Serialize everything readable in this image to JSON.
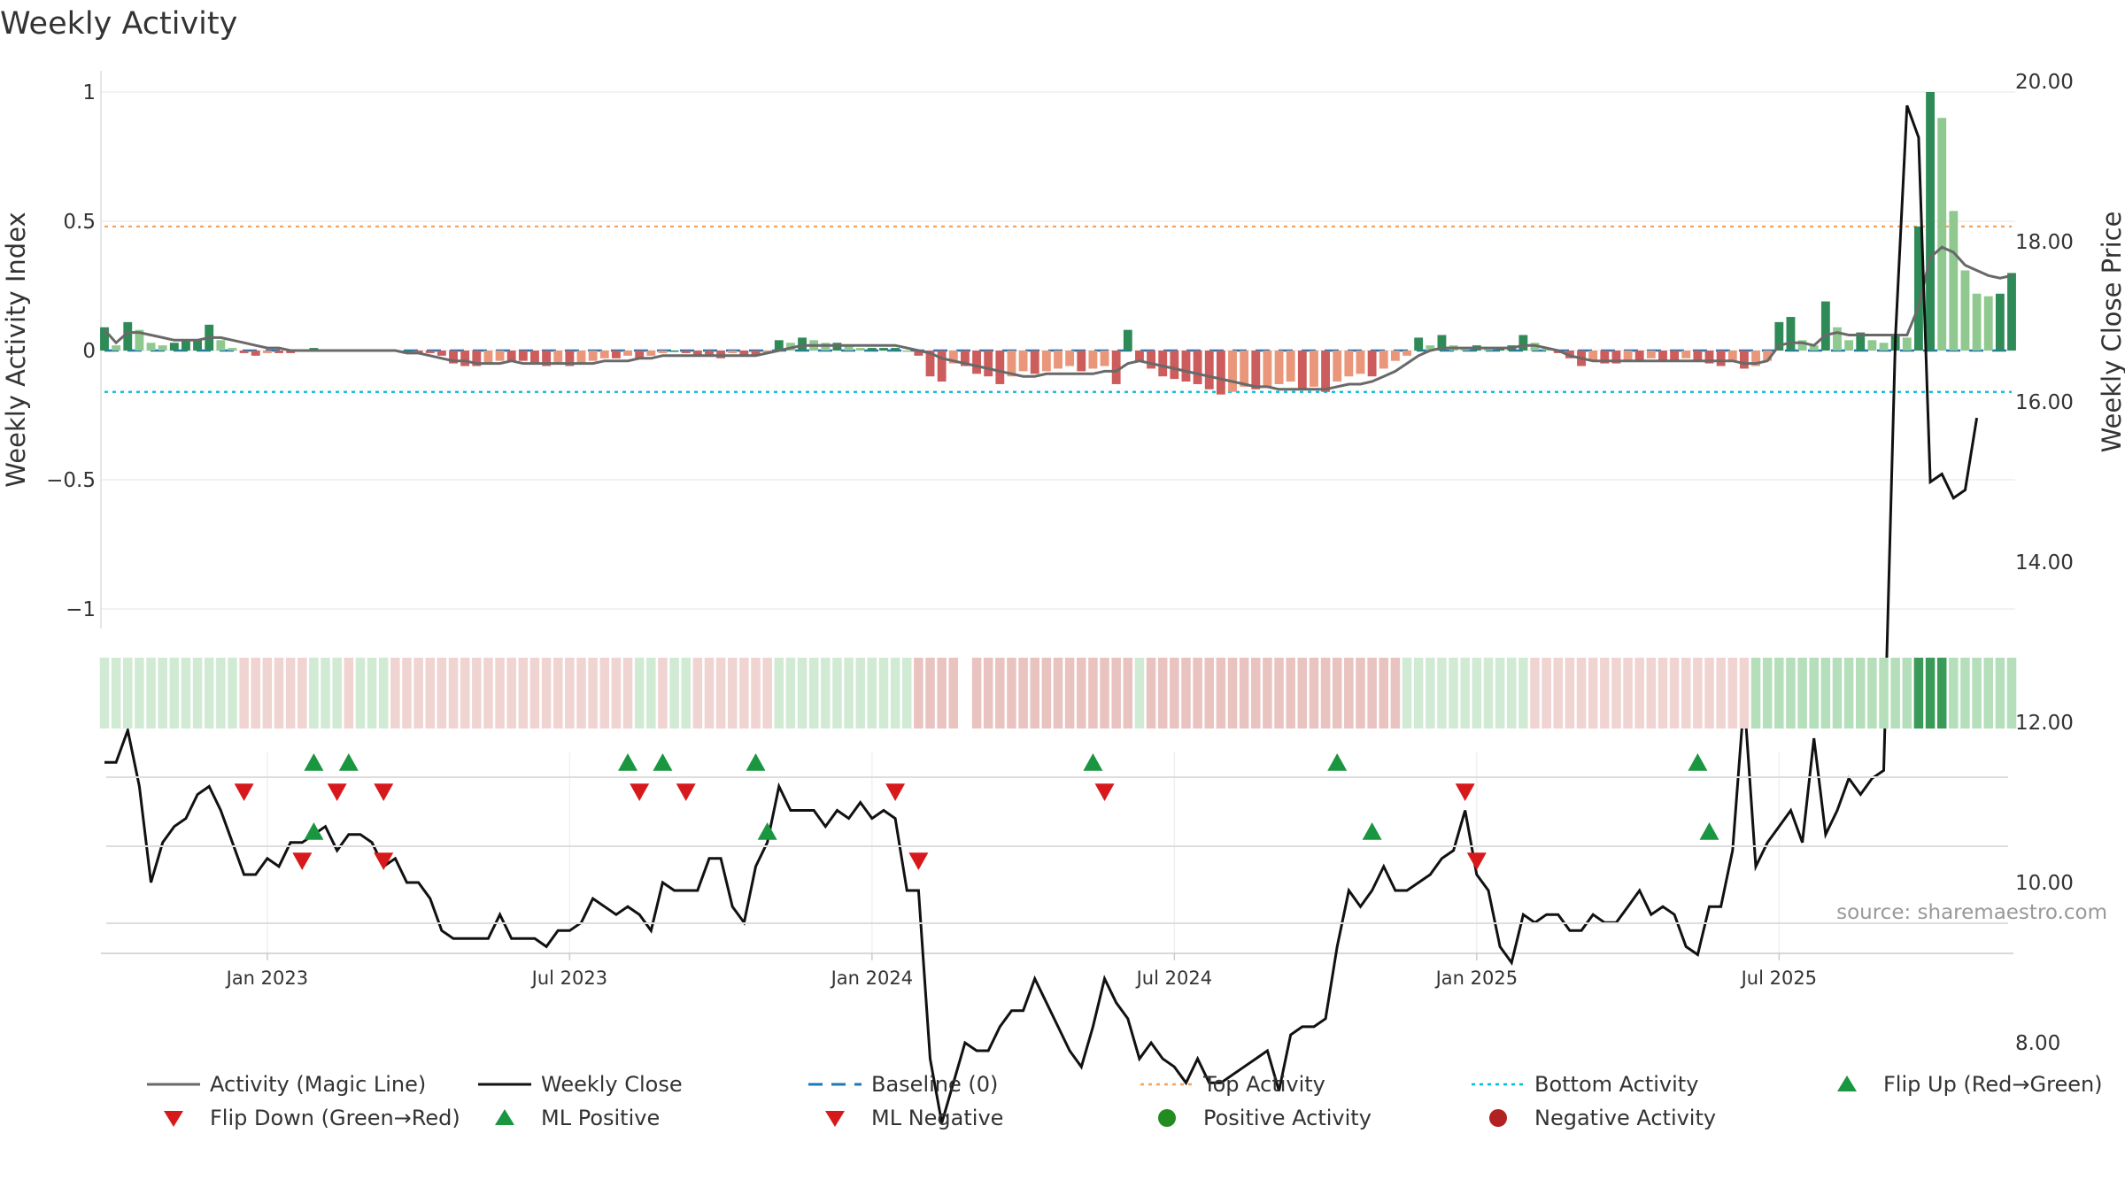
{
  "chart_data": {
    "type": "bar+line",
    "title": "Weekly Activity",
    "source": "source: sharemaestro.com",
    "left_axis": {
      "label": "Weekly Activity Index",
      "ticks": [
        "1",
        "0.5",
        "0",
        "−0.5",
        "−1"
      ],
      "range": [
        -1.1,
        1.1
      ]
    },
    "right_axis": {
      "label": "Weekly Close Price",
      "ticks": [
        "20.00",
        "18.00",
        "16.00",
        "14.00",
        "12.00",
        "10.00",
        "8.00"
      ],
      "range": [
        6.6,
        20.1
      ]
    },
    "x_ticks": [
      "Jan 2023",
      "Jul 2023",
      "Jan 2024",
      "Jul 2024",
      "Jan 2025",
      "Jul 2025"
    ],
    "x_tick_weeks": [
      14,
      40,
      66,
      92,
      118,
      144
    ],
    "thresholds": {
      "top": 0.48,
      "bottom": -0.16,
      "baseline": 0
    },
    "activity": [
      0.09,
      0.02,
      0.11,
      0.08,
      0.03,
      0.02,
      0.03,
      0.04,
      0.04,
      0.1,
      0.04,
      0.01,
      -0.01,
      -0.02,
      -0.01,
      -0.01,
      -0.01,
      0,
      0.01,
      0,
      0,
      0,
      0,
      0,
      0,
      0,
      0,
      -0.01,
      -0.01,
      -0.02,
      -0.05,
      -0.06,
      -0.06,
      -0.05,
      -0.04,
      -0.04,
      -0.04,
      -0.05,
      -0.06,
      -0.05,
      -0.06,
      -0.05,
      -0.04,
      -0.03,
      -0.03,
      -0.02,
      -0.03,
      -0.02,
      -0.01,
      0,
      -0.01,
      -0.02,
      -0.02,
      -0.03,
      -0.01,
      -0.02,
      -0.02,
      -0.01,
      0.04,
      0.03,
      0.05,
      0.04,
      0.03,
      0.03,
      0.02,
      0.01,
      0.01,
      0.01,
      0.01,
      0,
      -0.02,
      -0.1,
      -0.12,
      -0.05,
      -0.06,
      -0.09,
      -0.1,
      -0.13,
      -0.1,
      -0.08,
      -0.09,
      -0.08,
      -0.07,
      -0.06,
      -0.08,
      -0.07,
      -0.06,
      -0.13,
      0.08,
      -0.04,
      -0.07,
      -0.1,
      -0.11,
      -0.12,
      -0.13,
      -0.15,
      -0.17,
      -0.16,
      -0.14,
      -0.15,
      -0.14,
      -0.13,
      -0.12,
      -0.15,
      -0.14,
      -0.16,
      -0.12,
      -0.1,
      -0.09,
      -0.1,
      -0.07,
      -0.04,
      -0.02,
      0.05,
      0.02,
      0.06,
      0.02,
      0.01,
      0.02,
      0.01,
      0.01,
      0.02,
      0.06,
      0.03,
      0.01,
      -0.01,
      -0.03,
      -0.06,
      -0.04,
      -0.05,
      -0.05,
      -0.04,
      -0.04,
      -0.03,
      -0.04,
      -0.04,
      -0.03,
      -0.04,
      -0.05,
      -0.06,
      -0.04,
      -0.07,
      -0.06,
      -0.04,
      0.11,
      0.13,
      0.04,
      0.02,
      0.19,
      0.09,
      0.04,
      0.07,
      0.04,
      0.03,
      0.06,
      0.05,
      0.48,
      1.0,
      0.9,
      0.54,
      0.31,
      0.22,
      0.21,
      0.22,
      0.3
    ],
    "magic_line": [
      0.08,
      0.03,
      0.07,
      0.07,
      0.06,
      0.05,
      0.04,
      0.04,
      0.04,
      0.05,
      0.05,
      0.04,
      0.03,
      0.02,
      0.01,
      0.01,
      0,
      0,
      0,
      0,
      0,
      0,
      0,
      0,
      0,
      0,
      -0.01,
      -0.01,
      -0.02,
      -0.03,
      -0.04,
      -0.04,
      -0.05,
      -0.05,
      -0.05,
      -0.04,
      -0.05,
      -0.05,
      -0.05,
      -0.05,
      -0.05,
      -0.05,
      -0.05,
      -0.04,
      -0.04,
      -0.04,
      -0.03,
      -0.03,
      -0.02,
      -0.02,
      -0.02,
      -0.02,
      -0.02,
      -0.02,
      -0.02,
      -0.02,
      -0.02,
      -0.01,
      0,
      0.01,
      0.02,
      0.02,
      0.02,
      0.02,
      0.02,
      0.02,
      0.02,
      0.02,
      0.02,
      0.01,
      0,
      -0.01,
      -0.03,
      -0.04,
      -0.05,
      -0.06,
      -0.07,
      -0.08,
      -0.09,
      -0.1,
      -0.1,
      -0.09,
      -0.09,
      -0.09,
      -0.09,
      -0.09,
      -0.08,
      -0.08,
      -0.05,
      -0.04,
      -0.05,
      -0.06,
      -0.07,
      -0.08,
      -0.09,
      -0.1,
      -0.11,
      -0.12,
      -0.13,
      -0.14,
      -0.14,
      -0.15,
      -0.15,
      -0.15,
      -0.15,
      -0.15,
      -0.14,
      -0.13,
      -0.13,
      -0.12,
      -0.1,
      -0.08,
      -0.05,
      -0.02,
      0,
      0.01,
      0.01,
      0.01,
      0.01,
      0.01,
      0.01,
      0.01,
      0.02,
      0.02,
      0.01,
      0,
      -0.02,
      -0.03,
      -0.04,
      -0.04,
      -0.04,
      -0.04,
      -0.04,
      -0.04,
      -0.04,
      -0.04,
      -0.04,
      -0.04,
      -0.04,
      -0.04,
      -0.04,
      -0.05,
      -0.05,
      -0.04,
      0.02,
      0.03,
      0.03,
      0.02,
      0.06,
      0.07,
      0.06,
      0.06,
      0.06,
      0.06,
      0.06,
      0.06,
      0.17,
      0.36,
      0.4,
      0.38,
      0.33,
      0.31,
      0.29,
      0.28,
      0.29
    ],
    "weekly_close": [
      11.5,
      11.5,
      11.9,
      11.2,
      10.0,
      10.5,
      10.7,
      10.8,
      11.1,
      11.2,
      10.9,
      10.5,
      10.1,
      10.1,
      10.3,
      10.2,
      10.5,
      10.5,
      10.6,
      10.7,
      10.4,
      10.6,
      10.6,
      10.5,
      10.2,
      10.3,
      10.0,
      10.0,
      9.8,
      9.4,
      9.3,
      9.3,
      9.3,
      9.3,
      9.6,
      9.3,
      9.3,
      9.3,
      9.2,
      9.4,
      9.4,
      9.5,
      9.8,
      9.7,
      9.6,
      9.7,
      9.6,
      9.4,
      10.0,
      9.9,
      9.9,
      9.9,
      10.3,
      10.3,
      9.7,
      9.5,
      10.2,
      10.5,
      11.2,
      10.9,
      10.9,
      10.9,
      10.7,
      10.9,
      10.8,
      11.0,
      10.8,
      10.9,
      10.8,
      9.9,
      9.9,
      7.8,
      7.0,
      7.5,
      8.0,
      7.9,
      7.9,
      8.2,
      8.4,
      8.4,
      8.8,
      8.5,
      8.2,
      7.9,
      7.7,
      8.2,
      8.8,
      8.5,
      8.3,
      7.8,
      8.0,
      7.8,
      7.7,
      7.5,
      7.8,
      7.5,
      7.5,
      7.6,
      7.7,
      7.8,
      7.9,
      7.4,
      8.1,
      8.2,
      8.2,
      8.3,
      9.2,
      9.9,
      9.7,
      9.9,
      10.2,
      9.9,
      9.9,
      10.0,
      10.1,
      10.3,
      10.4,
      10.9,
      10.1,
      9.9,
      9.2,
      9.0,
      9.6,
      9.5,
      9.6,
      9.6,
      9.4,
      9.4,
      9.6,
      9.5,
      9.5,
      9.7,
      9.9,
      9.6,
      9.7,
      9.6,
      9.2,
      9.1,
      9.7,
      9.7,
      10.4,
      12.3,
      10.2,
      10.5,
      10.7,
      10.9,
      10.5,
      11.8,
      10.6,
      10.9,
      11.3,
      11.1,
      11.3,
      11.4,
      16.8,
      19.7,
      19.3,
      15.0,
      15.1,
      14.8,
      14.9,
      15.8
    ],
    "heat_strip_state": [
      "g",
      "g",
      "g",
      "g",
      "g",
      "g",
      "g",
      "g",
      "g",
      "g",
      "g",
      "g",
      "r",
      "r",
      "r",
      "r",
      "r",
      "r",
      "g",
      "g",
      "g",
      "r",
      "g",
      "g",
      "g",
      "r",
      "r",
      "r",
      "r",
      "r",
      "r",
      "r",
      "r",
      "r",
      "r",
      "r",
      "r",
      "r",
      "r",
      "r",
      "r",
      "r",
      "r",
      "r",
      "r",
      "r",
      "g",
      "g",
      "r",
      "g",
      "g",
      "r",
      "r",
      "r",
      "r",
      "r",
      "r",
      "r",
      "g",
      "g",
      "g",
      "g",
      "g",
      "g",
      "g",
      "g",
      "g",
      "g",
      "g",
      "g",
      "r",
      "r",
      "r",
      "r",
      "",
      "r",
      "r",
      "r",
      "r",
      "r",
      "r",
      "r",
      "r",
      "r",
      "r",
      "r",
      "r",
      "r",
      "r",
      "g",
      "r",
      "r",
      "r",
      "r",
      "r",
      "r",
      "r",
      "r",
      "r",
      "r",
      "r",
      "r",
      "r",
      "r",
      "r",
      "r",
      "r",
      "r",
      "r",
      "r",
      "r",
      "r",
      "g",
      "g",
      "g",
      "g",
      "g",
      "g",
      "g",
      "g",
      "g",
      "g",
      "g",
      "r",
      "r",
      "r",
      "r",
      "r",
      "r",
      "r",
      "r",
      "r",
      "r",
      "r",
      "r",
      "r",
      "r",
      "r",
      "r",
      "r",
      "r",
      "r",
      "g",
      "g",
      "g",
      "g",
      "g",
      "g",
      "g",
      "g",
      "g",
      "g",
      "g",
      "g",
      "g",
      "g",
      "G",
      "G",
      "G",
      "g",
      "g",
      "g",
      "g",
      "g",
      "g"
    ],
    "flip_up_weeks": [
      18,
      21,
      45,
      48,
      56,
      85,
      106,
      137
    ],
    "flip_down_weeks": [
      12,
      20,
      24,
      46,
      50,
      68,
      86,
      117
    ],
    "ml_positive_weeks": [
      18,
      57,
      109,
      138
    ],
    "ml_negative_weeks": [
      17,
      24,
      70,
      118
    ],
    "colors": {
      "pos_strong": "#2e8b57",
      "pos_light": "#8fc98f",
      "neg_strong": "#cd5c5c",
      "neg_light": "#e9967a",
      "magic": "#696969",
      "close": "#111111",
      "baseline": "#1f77b4",
      "top": "#f4a460",
      "bottom": "#00bcd4",
      "flip_up": "#1a9641",
      "flip_down": "#d7191c",
      "pos_dot": "#228b22",
      "neg_dot": "#b22222"
    },
    "legend": [
      {
        "label": "Activity (Magic Line)",
        "icon": "gray-line"
      },
      {
        "label": "Weekly Close",
        "icon": "black-line"
      },
      {
        "label": "Baseline (0)",
        "icon": "blue-dashed-line"
      },
      {
        "label": "Top Activity",
        "icon": "orange-dotted-line"
      },
      {
        "label": "Bottom Activity",
        "icon": "cyan-dotted-line"
      },
      {
        "label": "Flip Up (Red→Green)",
        "icon": "green-up-triangle"
      },
      {
        "label": "Flip Down (Green→Red)",
        "icon": "red-down-triangle"
      },
      {
        "label": "ML Positive",
        "icon": "green-up-triangle"
      },
      {
        "label": "ML Negative",
        "icon": "red-down-triangle"
      },
      {
        "label": "Positive Activity",
        "icon": "green-dot"
      },
      {
        "label": "Negative Activity",
        "icon": "red-dot"
      }
    ]
  }
}
